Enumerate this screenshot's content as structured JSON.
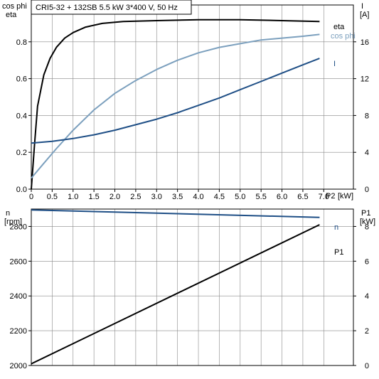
{
  "colors": {
    "eta": "#000000",
    "cos_phi": "#7ca0be",
    "current": "#1f4f86",
    "speed": "#1f4f86",
    "p1": "#000000",
    "grid": "#888888"
  },
  "header": {
    "title": "CRI5-32 + 132SB   5.5 kW   3*400 V, 50 Hz"
  },
  "chart_data": [
    {
      "type": "line",
      "title": "CRI5-32 + 132SB   5.5 kW   3*400 V, 50 Hz",
      "xlabel": "P2 [kW]",
      "x_label_name": "P2",
      "x_label_unit": "[kW]",
      "xlim": [
        0,
        7.5
      ],
      "x_ticks": [
        "0",
        "0.5",
        "1.0",
        "1.5",
        "2.0",
        "2.5",
        "3.0",
        "3.5",
        "4.0",
        "4.5",
        "5.0",
        "5.5",
        "6.0",
        "6.5",
        "7.0"
      ],
      "left_axis": {
        "label_top": "cos phi",
        "label_bottom": "eta",
        "ylim": [
          0,
          1.0
        ],
        "ticks": [
          "0.0",
          "0.2",
          "0.4",
          "0.6",
          "0.8"
        ]
      },
      "right_axis": {
        "label_top": "I",
        "label_bottom": "[A]",
        "ylim": [
          0,
          20
        ],
        "ticks": [
          "0",
          "4",
          "8",
          "12",
          "16"
        ]
      },
      "grid": true,
      "series": [
        {
          "name": "eta",
          "axis": "left",
          "x": [
            0,
            0.08,
            0.15,
            0.3,
            0.45,
            0.6,
            0.8,
            1.0,
            1.3,
            1.7,
            2.2,
            3.0,
            4.0,
            5.0,
            6.0,
            6.9
          ],
          "y": [
            0,
            0.25,
            0.45,
            0.62,
            0.71,
            0.77,
            0.82,
            0.85,
            0.88,
            0.9,
            0.91,
            0.915,
            0.92,
            0.92,
            0.915,
            0.91
          ]
        },
        {
          "name": "cos phi",
          "axis": "left",
          "x": [
            0,
            0.3,
            0.6,
            1.0,
            1.5,
            2.0,
            2.5,
            3.0,
            3.5,
            4.0,
            4.5,
            5.0,
            5.5,
            6.0,
            6.5,
            6.9
          ],
          "y": [
            0.06,
            0.14,
            0.22,
            0.32,
            0.43,
            0.52,
            0.59,
            0.65,
            0.7,
            0.74,
            0.77,
            0.79,
            0.81,
            0.82,
            0.83,
            0.84
          ]
        },
        {
          "name": "I",
          "axis": "right",
          "x": [
            0,
            0.5,
            1.0,
            1.5,
            2.0,
            2.5,
            3.0,
            3.5,
            4.0,
            4.5,
            5.0,
            5.5,
            6.0,
            6.5,
            6.9
          ],
          "y": [
            5.0,
            5.2,
            5.5,
            5.9,
            6.4,
            7.0,
            7.6,
            8.3,
            9.1,
            9.9,
            10.8,
            11.7,
            12.6,
            13.5,
            14.2
          ]
        }
      ]
    },
    {
      "type": "line",
      "xlim": [
        0,
        7.5
      ],
      "left_axis": {
        "label_top": "n",
        "label_bottom": "[rpm]",
        "ylim": [
          2000,
          2900
        ],
        "ticks": [
          "2000",
          "2200",
          "2400",
          "2600",
          "2800"
        ]
      },
      "right_axis": {
        "label_top": "P1",
        "label_bottom": "[kW]",
        "ylim": [
          0,
          9
        ],
        "ticks": [
          "0",
          "2",
          "4",
          "6",
          "8"
        ]
      },
      "grid": true,
      "series": [
        {
          "name": "n",
          "axis": "left",
          "x": [
            0,
            6.9
          ],
          "y": [
            2895,
            2852
          ]
        },
        {
          "name": "P1",
          "axis": "right",
          "x": [
            0,
            6.9
          ],
          "y": [
            0.1,
            8.1
          ]
        }
      ]
    }
  ]
}
